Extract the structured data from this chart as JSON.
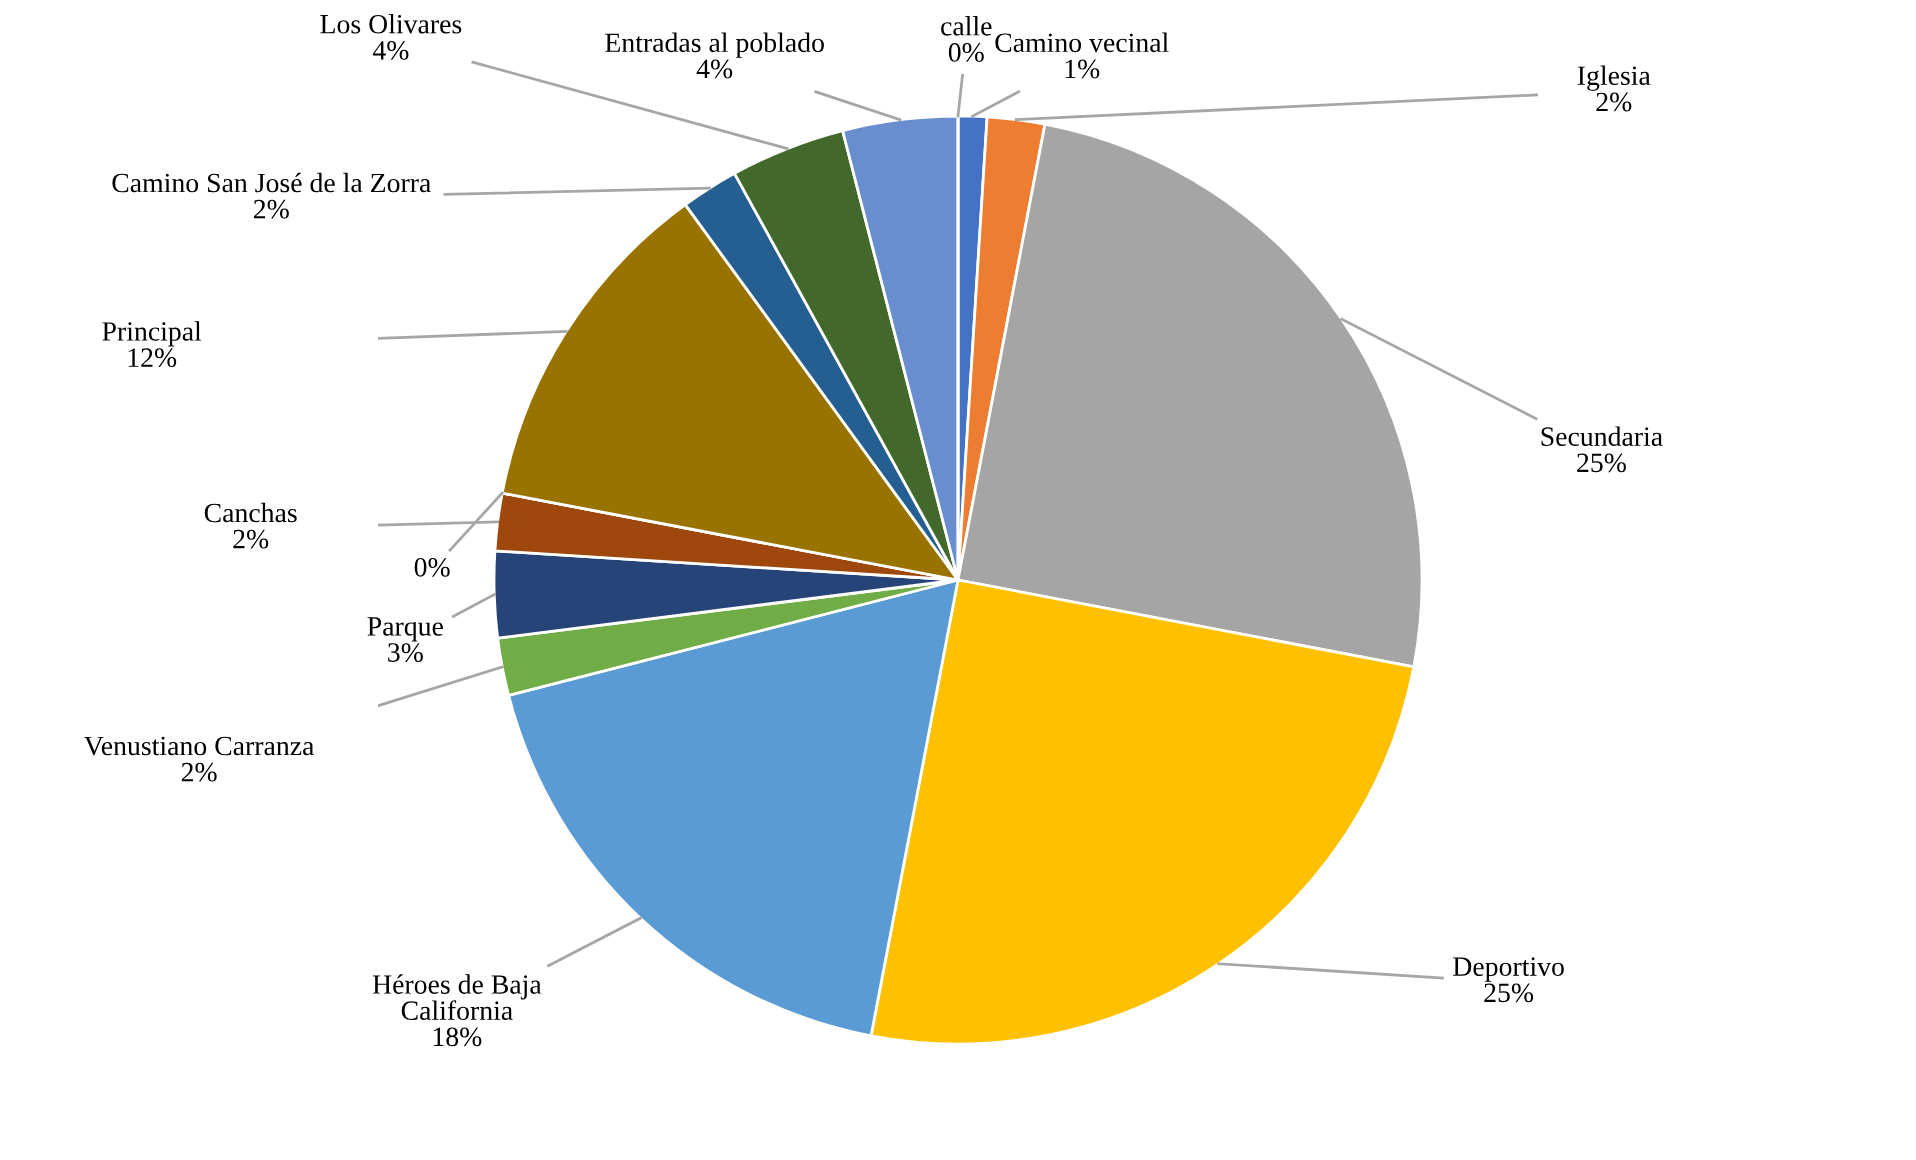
{
  "chart_data": {
    "type": "pie",
    "categories": [
      "Camino vecinal",
      "Iglesia",
      "Secundaria",
      "Deportivo",
      "Héroes de Baja\nCalifornia",
      "Venustiano Carranza",
      "Parque",
      "Canchas",
      null,
      "Principal",
      "Camino San José de la Zorra",
      "Los Olivares",
      "Entradas al poblado",
      "calle"
    ],
    "values": [
      1,
      2,
      25,
      25,
      18,
      2,
      3,
      2,
      0,
      12,
      2,
      4,
      4,
      0
    ],
    "colors": [
      "#4472c4",
      "#ed7d31",
      "#a5a5a5",
      "#ffc000",
      "#5b9bd5",
      "#70ad47",
      "#264478",
      "#9e480e",
      "#636363",
      "#997300",
      "#255e91",
      "#43682b",
      "#698ed0",
      "#f1975a"
    ],
    "value_labels": [
      "1%",
      "2%",
      "25%",
      "25%",
      "18%",
      "2%",
      "3%",
      "2%",
      "0%",
      "12%",
      "2%",
      "4%",
      "4%",
      "0%"
    ],
    "legend": false
  }
}
